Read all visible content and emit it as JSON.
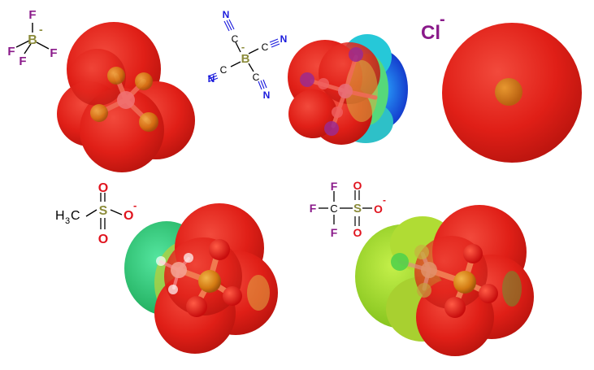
{
  "panels": {
    "bf4": {
      "formula": {
        "center": "B",
        "charge": "-",
        "ligand": "F"
      },
      "colors": {
        "boron": "#8b8b3a",
        "fluorine": "#8a1a8a",
        "surface": "#e2231a"
      }
    },
    "tcb": {
      "formula": {
        "center": "B",
        "charge": "-",
        "carbon": "C",
        "nitrogen": "N"
      },
      "colors": {
        "boron": "#8b8b3a",
        "nitrogen": "#1a1adc",
        "carbon": "#000000",
        "surface_low": "#e2231a",
        "surface_high": "#1c3fd6"
      }
    },
    "chloride": {
      "formula": {
        "symbol": "Cl",
        "charge": "-"
      },
      "colors": {
        "chlorine": "#8a1a8a",
        "surface": "#e2231a"
      }
    },
    "mesylate": {
      "formula": {
        "methyl": "H",
        "methyl_sub": "3",
        "methyl_c": "C",
        "sulfur": "S",
        "oxygen": "O",
        "charge": "-"
      },
      "colors": {
        "sulfur": "#8b8b3a",
        "oxygen": "#e0141e",
        "surface_low": "#e2231a",
        "surface_high": "#3fd07a"
      }
    },
    "triflate": {
      "formula": {
        "fluorine": "F",
        "carbon": "C",
        "sulfur": "S",
        "oxygen": "O",
        "charge": "-"
      },
      "colors": {
        "fluorine": "#8a1a8a",
        "sulfur": "#8b8b3a",
        "oxygen": "#e0141e",
        "surface_low": "#e2231a",
        "surface_high": "#a6d63a"
      }
    }
  }
}
